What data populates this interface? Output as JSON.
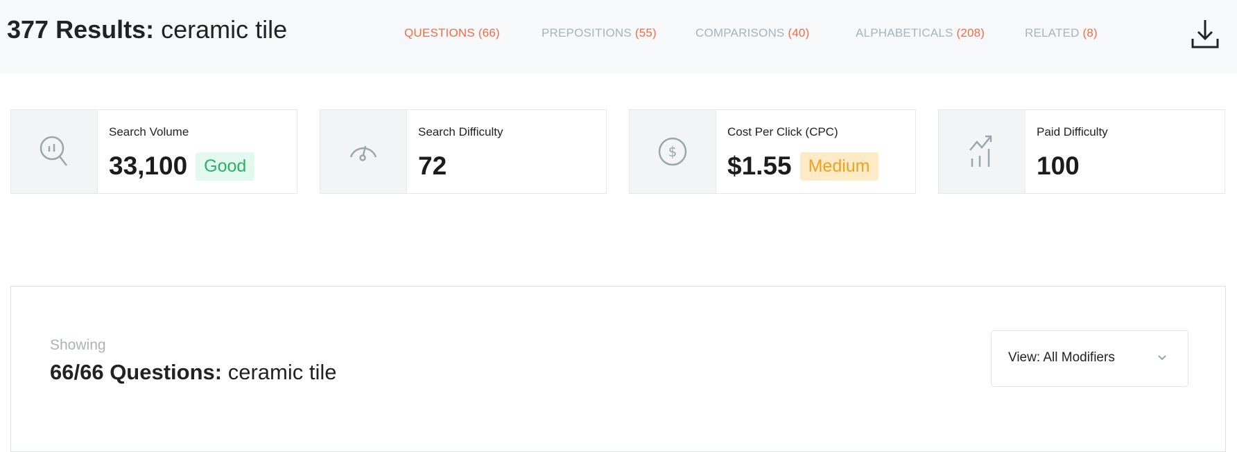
{
  "header": {
    "count_label": "377 Results:",
    "query": "ceramic tile",
    "tabs": [
      {
        "label": "QUESTIONS",
        "count": "(66)",
        "active": true
      },
      {
        "label": "PREPOSITIONS",
        "count": "(55)",
        "active": false
      },
      {
        "label": "COMPARISONS",
        "count": "(40)",
        "active": false
      },
      {
        "label": "ALPHABETICALS",
        "count": "(208)",
        "active": false
      },
      {
        "label": "RELATED",
        "count": "(8)",
        "active": false
      }
    ],
    "download_icon": "download-icon"
  },
  "metrics": [
    {
      "label": "Search Volume",
      "value": "33,100",
      "badge": "Good",
      "icon": "search-chart-icon"
    },
    {
      "label": "Search Difficulty",
      "value": "72",
      "icon": "gauge-icon"
    },
    {
      "label": "Cost Per Click (CPC)",
      "value": "$1.55",
      "badge": "Medium",
      "icon": "dollar-circle-icon"
    },
    {
      "label": "Paid Difficulty",
      "value": "100",
      "icon": "trend-bars-icon"
    }
  ],
  "panel": {
    "showing_label": "Showing",
    "count_label": "66/66 Questions:",
    "query": "ceramic tile",
    "view_dropdown": "View: All Modifiers"
  },
  "colors": {
    "accent": "#f26b45",
    "muted": "#a9b3b8",
    "good": "#2bb069",
    "medium": "#eca21f"
  }
}
